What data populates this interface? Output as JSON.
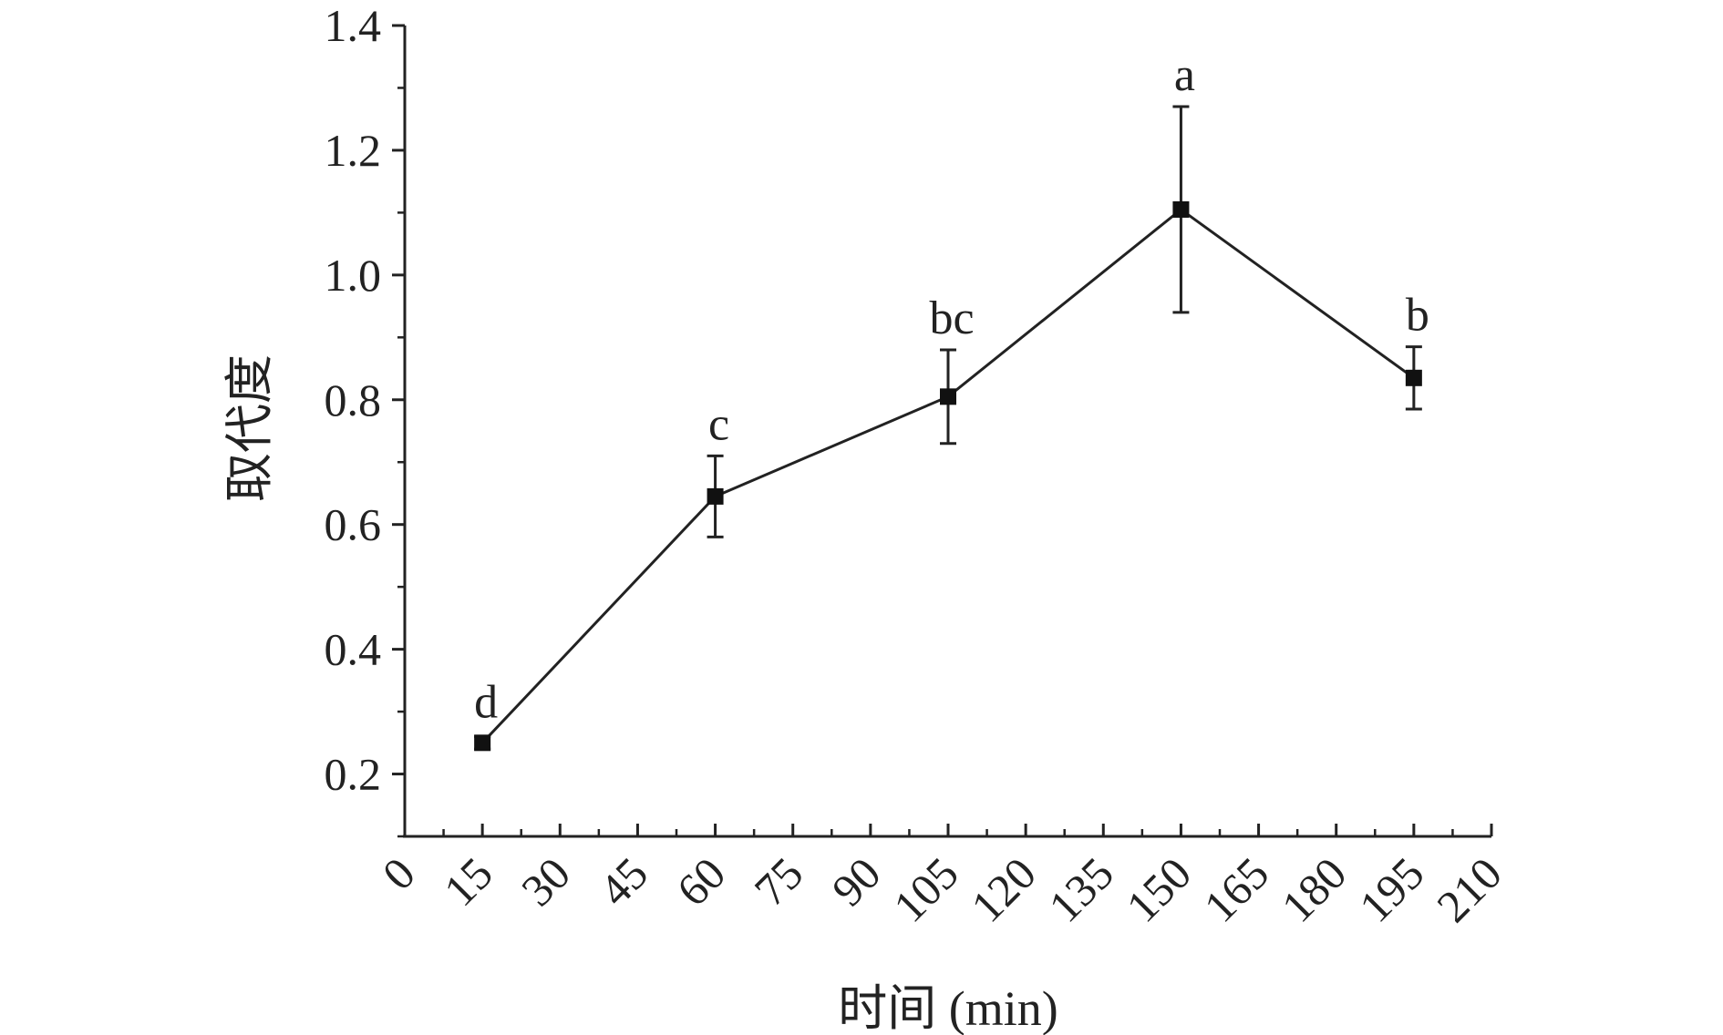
{
  "chart_data": {
    "type": "line",
    "title": "",
    "xlabel": "时间 (min)",
    "ylabel": "取代度",
    "xlim": [
      0,
      210
    ],
    "ylim": [
      0.1,
      1.4
    ],
    "x_ticks": [
      "0",
      "15",
      "30",
      "45",
      "60",
      "75",
      "90",
      "105",
      "120",
      "135",
      "150",
      "165",
      "180",
      "195",
      "210"
    ],
    "y_ticks": [
      "0.2",
      "0.4",
      "0.6",
      "0.8",
      "1.0",
      "1.2",
      "1.4"
    ],
    "grid": false,
    "series": [
      {
        "x": [
          15,
          60,
          105,
          150,
          195
        ],
        "y": [
          0.25,
          0.645,
          0.805,
          1.105,
          0.835
        ],
        "error": [
          0.01,
          0.065,
          0.075,
          0.165,
          0.05
        ],
        "labels": [
          "d",
          "c",
          "bc",
          "a",
          "b"
        ]
      }
    ]
  }
}
